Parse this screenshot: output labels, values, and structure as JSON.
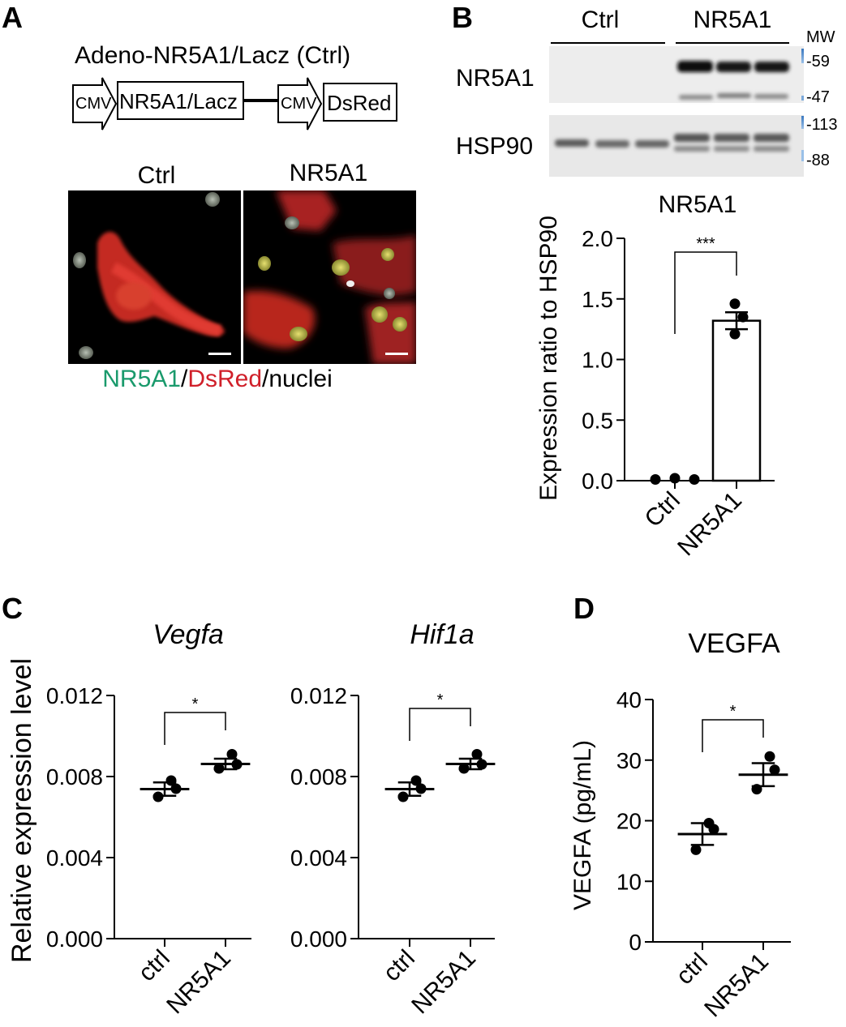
{
  "figure": {
    "colors": {
      "green": "#1a9a6c",
      "red": "#d0202a",
      "black": "#000000",
      "blot_bg": "#ececec"
    },
    "panelA": {
      "letter": "A",
      "construct_title": "Adeno-NR5A1/Lacz (Ctrl)",
      "promoter1": "CMV",
      "gene1": "NR5A1/Lacz",
      "promoter2": "CMV",
      "gene2": "DsRed",
      "image_labels": [
        "Ctrl",
        "NR5A1"
      ],
      "stain_legend": {
        "green": "NR5A1",
        "sep1": "/",
        "red": "DsRed",
        "sep2": "/",
        "rest": "nuclei"
      }
    },
    "panelB": {
      "letter": "B",
      "blot_groups": [
        "Ctrl",
        "NR5A1"
      ],
      "blot_rows": [
        "NR5A1",
        "HSP90"
      ],
      "mw_title": "MW",
      "mw_markers": [
        "-59",
        "-47",
        "-113",
        "-88"
      ]
    },
    "panelC": {
      "letter": "C"
    },
    "panelD": {
      "letter": "D"
    }
  },
  "chart_data": [
    {
      "id": "b",
      "type": "bar",
      "title": "NR5A1",
      "ylabel": "Expression ratio to HSP90",
      "xlabel": "",
      "categories": [
        "Ctrl",
        "NR5A1"
      ],
      "yticks": [
        "0.0",
        "0.5",
        "1.0",
        "1.5",
        "2.0"
      ],
      "ylim": [
        0,
        2.0
      ],
      "bars": [
        {
          "mean": 0.02,
          "sem": 0.0,
          "points": [
            0.01,
            0.02,
            0.01
          ]
        },
        {
          "mean": 1.32,
          "sem": 0.07,
          "points": [
            1.46,
            1.35,
            1.21
          ]
        }
      ],
      "significance": "***"
    },
    {
      "id": "c1",
      "type": "scatter",
      "title": "Vegfa",
      "ylabel": "Relative expression level",
      "categories": [
        "ctrl",
        "NR5A1"
      ],
      "yticks": [
        "0.000",
        "0.004",
        "0.008",
        "0.012"
      ],
      "ylim": [
        0,
        0.012
      ],
      "groups": [
        {
          "mean": 0.00738,
          "sem": 0.00033,
          "points": [
            0.0078,
            0.0074,
            0.007
          ]
        },
        {
          "mean": 0.00862,
          "sem": 0.00026,
          "points": [
            0.0091,
            0.0086,
            0.0084
          ]
        }
      ],
      "significance": "*"
    },
    {
      "id": "c2",
      "type": "scatter",
      "title": "Hif1a",
      "ylabel": "",
      "categories": [
        "ctrl",
        "NR5A1"
      ],
      "yticks": [
        "0.000",
        "0.004",
        "0.008",
        "0.012"
      ],
      "ylim": [
        0,
        0.012
      ],
      "groups": [
        {
          "mean": 0.00738,
          "sem": 0.00033,
          "points": [
            0.0078,
            0.0074,
            0.007
          ]
        },
        {
          "mean": 0.00862,
          "sem": 0.00026,
          "points": [
            0.0091,
            0.0086,
            0.0084
          ]
        }
      ],
      "significance": "*"
    },
    {
      "id": "d",
      "type": "scatter",
      "title": "VEGFA",
      "ylabel": "VEGFA (pg/mL)",
      "categories": [
        "ctrl",
        "NR5A1"
      ],
      "yticks": [
        "0",
        "10",
        "20",
        "30",
        "40"
      ],
      "ylim": [
        0,
        40
      ],
      "groups": [
        {
          "mean": 17.8,
          "sem": 1.8,
          "points": [
            19.6,
            18.6,
            15.2
          ]
        },
        {
          "mean": 27.6,
          "sem": 1.9,
          "points": [
            30.6,
            28.4,
            25.2
          ]
        }
      ],
      "significance": "*"
    }
  ]
}
